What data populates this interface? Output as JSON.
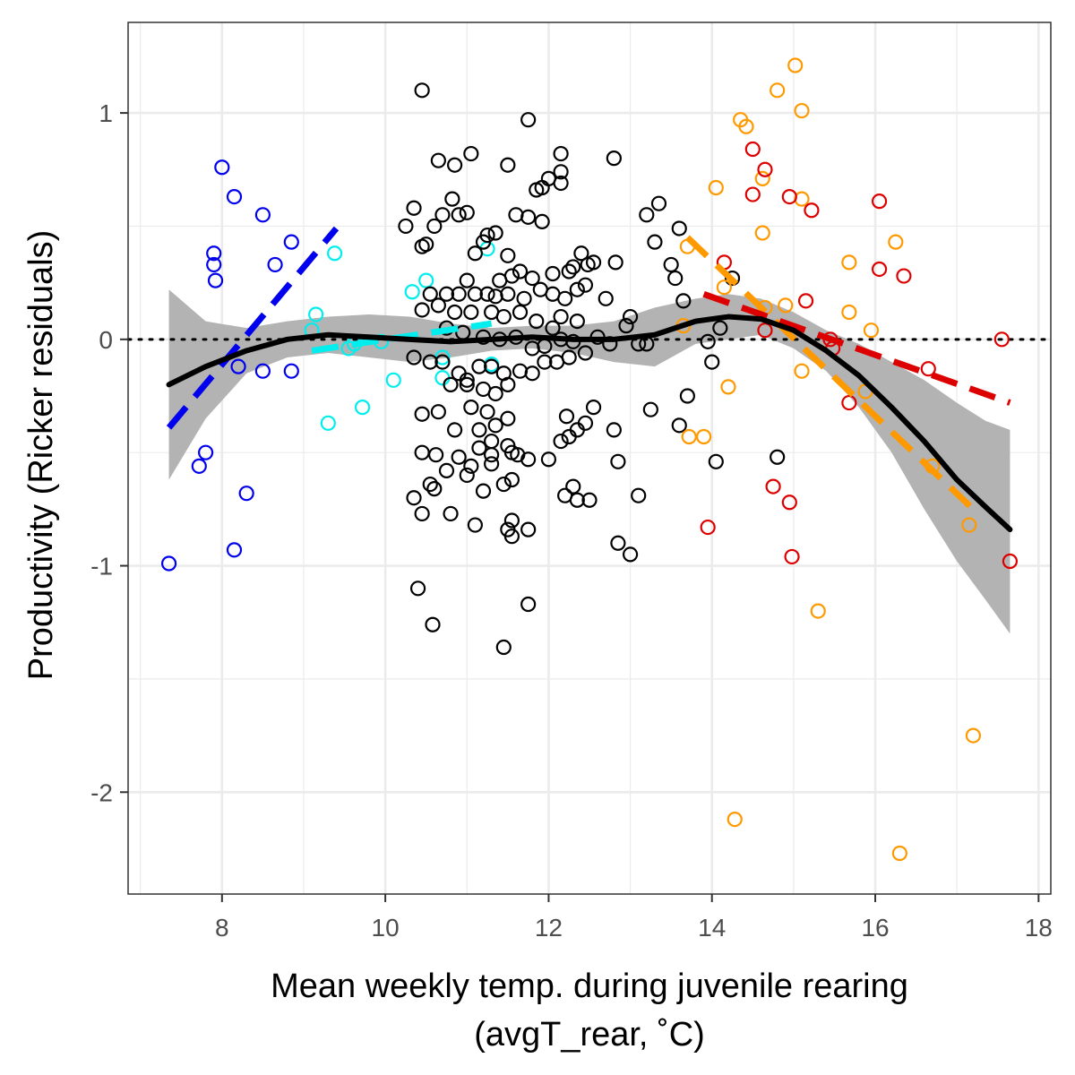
{
  "chart_data": {
    "type": "scatter",
    "title": "",
    "xlabel": "Mean weekly temp. during juvenile rearing",
    "xlabel_line2": "(avgT_rear, ˚C)",
    "ylabel": "Productivity (Ricker residuals)",
    "xlim": [
      6.85,
      18.15
    ],
    "ylim": [
      -2.45,
      1.4
    ],
    "x_ticks": [
      8,
      10,
      12,
      14,
      16,
      18
    ],
    "x_tick_labels": [
      "8",
      "10",
      "12",
      "14",
      "16",
      "18"
    ],
    "y_ticks": [
      -2,
      -1,
      0,
      1
    ],
    "y_tick_labels": [
      "-2",
      "-1",
      "0",
      "1"
    ],
    "grid": true,
    "reference_line_y": 0,
    "colors": {
      "blue": "#0000ee",
      "cyan": "#00eeee",
      "black": "#000000",
      "orange": "#ff9900",
      "red": "#dd0000",
      "ribbon": "#b3b3b3",
      "grid": "#ebebeb"
    },
    "series": [
      {
        "color": "blue",
        "points": [
          [
            7.35,
            -0.99
          ],
          [
            8.0,
            0.76
          ],
          [
            8.15,
            0.63
          ],
          [
            8.5,
            0.55
          ],
          [
            7.9,
            0.38
          ],
          [
            7.9,
            0.33
          ],
          [
            7.92,
            0.26
          ],
          [
            8.85,
            0.43
          ],
          [
            8.65,
            0.33
          ],
          [
            8.2,
            -0.12
          ],
          [
            8.5,
            -0.14
          ],
          [
            8.85,
            -0.14
          ],
          [
            7.8,
            -0.5
          ],
          [
            7.72,
            -0.56
          ],
          [
            8.3,
            -0.68
          ],
          [
            8.15,
            -0.93
          ]
        ]
      },
      {
        "color": "cyan",
        "points": [
          [
            9.38,
            0.38
          ],
          [
            9.15,
            0.11
          ],
          [
            9.1,
            0.04
          ],
          [
            9.55,
            -0.04
          ],
          [
            9.62,
            -0.02
          ],
          [
            9.3,
            -0.37
          ],
          [
            9.72,
            -0.3
          ],
          [
            9.95,
            -0.01
          ],
          [
            10.1,
            -0.18
          ],
          [
            10.33,
            0.21
          ],
          [
            10.5,
            0.26
          ],
          [
            10.7,
            -0.08
          ],
          [
            10.7,
            -0.17
          ],
          [
            11.25,
            0.4
          ],
          [
            11.3,
            -0.11
          ]
        ]
      },
      {
        "color": "black",
        "points": [
          [
            10.45,
            1.1
          ],
          [
            11.75,
            0.97
          ],
          [
            11.05,
            0.82
          ],
          [
            12.15,
            0.82
          ],
          [
            10.65,
            0.79
          ],
          [
            10.85,
            0.77
          ],
          [
            11.5,
            0.77
          ],
          [
            12.8,
            0.8
          ],
          [
            12.15,
            0.74
          ],
          [
            12.0,
            0.71
          ],
          [
            11.92,
            0.67
          ],
          [
            11.85,
            0.66
          ],
          [
            12.15,
            0.69
          ],
          [
            10.82,
            0.62
          ],
          [
            10.35,
            0.58
          ],
          [
            10.7,
            0.55
          ],
          [
            10.9,
            0.55
          ],
          [
            11.0,
            0.56
          ],
          [
            11.6,
            0.55
          ],
          [
            11.75,
            0.54
          ],
          [
            11.92,
            0.52
          ],
          [
            13.2,
            0.55
          ],
          [
            13.35,
            0.6
          ],
          [
            10.25,
            0.5
          ],
          [
            10.6,
            0.5
          ],
          [
            11.25,
            0.46
          ],
          [
            11.35,
            0.47
          ],
          [
            11.2,
            0.43
          ],
          [
            10.45,
            0.41
          ],
          [
            10.5,
            0.42
          ],
          [
            12.4,
            0.38
          ],
          [
            13.6,
            0.49
          ],
          [
            13.3,
            0.43
          ],
          [
            12.82,
            0.34
          ],
          [
            11.1,
            0.38
          ],
          [
            11.5,
            0.37
          ],
          [
            11.65,
            0.3
          ],
          [
            11.0,
            0.26
          ],
          [
            11.4,
            0.26
          ],
          [
            11.55,
            0.28
          ],
          [
            11.8,
            0.27
          ],
          [
            12.05,
            0.29
          ],
          [
            12.25,
            0.3
          ],
          [
            12.3,
            0.32
          ],
          [
            12.48,
            0.33
          ],
          [
            12.55,
            0.34
          ],
          [
            13.5,
            0.33
          ],
          [
            13.55,
            0.27
          ],
          [
            14.25,
            0.27
          ],
          [
            10.55,
            0.2
          ],
          [
            10.75,
            0.2
          ],
          [
            10.9,
            0.2
          ],
          [
            11.1,
            0.2
          ],
          [
            11.25,
            0.2
          ],
          [
            11.35,
            0.19
          ],
          [
            11.5,
            0.2
          ],
          [
            11.7,
            0.18
          ],
          [
            11.9,
            0.22
          ],
          [
            12.05,
            0.2
          ],
          [
            12.2,
            0.18
          ],
          [
            12.35,
            0.22
          ],
          [
            12.45,
            0.24
          ],
          [
            12.7,
            0.18
          ],
          [
            13.0,
            0.1
          ],
          [
            13.65,
            0.17
          ],
          [
            10.45,
            0.13
          ],
          [
            10.65,
            0.15
          ],
          [
            10.85,
            0.12
          ],
          [
            11.05,
            0.12
          ],
          [
            11.3,
            0.12
          ],
          [
            11.45,
            0.1
          ],
          [
            11.65,
            0.12
          ],
          [
            11.85,
            0.08
          ],
          [
            12.05,
            0.05
          ],
          [
            12.15,
            0.1
          ],
          [
            12.35,
            0.08
          ],
          [
            12.6,
            0.01
          ],
          [
            12.95,
            0.06
          ],
          [
            13.1,
            -0.02
          ],
          [
            10.75,
            0.05
          ],
          [
            10.95,
            0.03
          ],
          [
            11.2,
            0.01
          ],
          [
            11.4,
            0.0
          ],
          [
            11.6,
            0.01
          ],
          [
            11.8,
            -0.04
          ],
          [
            11.95,
            -0.03
          ],
          [
            12.15,
            0.0
          ],
          [
            12.3,
            -0.01
          ],
          [
            12.45,
            -0.06
          ],
          [
            12.75,
            -0.02
          ],
          [
            13.2,
            -0.02
          ],
          [
            13.95,
            -0.01
          ],
          [
            14.1,
            0.05
          ],
          [
            10.35,
            -0.08
          ],
          [
            10.55,
            -0.1
          ],
          [
            10.7,
            -0.1
          ],
          [
            10.9,
            -0.15
          ],
          [
            11.0,
            -0.2
          ],
          [
            11.15,
            -0.12
          ],
          [
            11.3,
            -0.12
          ],
          [
            11.45,
            -0.15
          ],
          [
            11.65,
            -0.14
          ],
          [
            11.8,
            -0.15
          ],
          [
            11.95,
            -0.1
          ],
          [
            12.1,
            -0.1
          ],
          [
            12.25,
            -0.08
          ],
          [
            10.8,
            -0.2
          ],
          [
            11.0,
            -0.18
          ],
          [
            11.2,
            -0.22
          ],
          [
            11.35,
            -0.24
          ],
          [
            11.5,
            -0.2
          ],
          [
            13.7,
            -0.25
          ],
          [
            14.0,
            -0.1
          ],
          [
            10.45,
            -0.33
          ],
          [
            10.65,
            -0.32
          ],
          [
            11.05,
            -0.3
          ],
          [
            11.25,
            -0.32
          ],
          [
            11.5,
            -0.35
          ],
          [
            11.35,
            -0.38
          ],
          [
            11.15,
            -0.4
          ],
          [
            10.85,
            -0.4
          ],
          [
            12.22,
            -0.34
          ],
          [
            12.35,
            -0.4
          ],
          [
            12.45,
            -0.37
          ],
          [
            12.25,
            -0.43
          ],
          [
            12.15,
            -0.45
          ],
          [
            12.8,
            -0.4
          ],
          [
            13.25,
            -0.31
          ],
          [
            13.6,
            -0.38
          ],
          [
            12.55,
            -0.3
          ],
          [
            11.3,
            -0.45
          ],
          [
            11.5,
            -0.47
          ],
          [
            11.15,
            -0.48
          ],
          [
            10.45,
            -0.5
          ],
          [
            10.62,
            -0.51
          ],
          [
            10.9,
            -0.52
          ],
          [
            11.3,
            -0.51
          ],
          [
            11.55,
            -0.5
          ],
          [
            11.62,
            -0.51
          ],
          [
            11.75,
            -0.53
          ],
          [
            12.0,
            -0.53
          ],
          [
            12.85,
            -0.54
          ],
          [
            14.05,
            -0.54
          ],
          [
            14.8,
            -0.52
          ],
          [
            10.75,
            -0.58
          ],
          [
            11.05,
            -0.56
          ],
          [
            11.3,
            -0.55
          ],
          [
            11.55,
            -0.62
          ],
          [
            12.3,
            -0.65
          ],
          [
            12.2,
            -0.69
          ],
          [
            12.35,
            -0.71
          ],
          [
            12.5,
            -0.71
          ],
          [
            13.1,
            -0.69
          ],
          [
            10.35,
            -0.7
          ],
          [
            10.55,
            -0.64
          ],
          [
            10.6,
            -0.66
          ],
          [
            10.45,
            -0.77
          ],
          [
            10.8,
            -0.77
          ],
          [
            11.0,
            -0.6
          ],
          [
            11.1,
            -0.82
          ],
          [
            11.2,
            -0.67
          ],
          [
            11.5,
            -0.84
          ],
          [
            11.55,
            -0.8
          ],
          [
            11.55,
            -0.87
          ],
          [
            11.75,
            -0.84
          ],
          [
            11.45,
            -0.64
          ],
          [
            12.85,
            -0.9
          ],
          [
            13.0,
            -0.95
          ],
          [
            10.4,
            -1.1
          ],
          [
            10.58,
            -1.26
          ],
          [
            11.75,
            -1.17
          ],
          [
            11.45,
            -1.36
          ]
        ]
      },
      {
        "color": "orange",
        "points": [
          [
            15.02,
            1.21
          ],
          [
            14.8,
            1.1
          ],
          [
            15.1,
            1.01
          ],
          [
            14.35,
            0.97
          ],
          [
            14.42,
            0.94
          ],
          [
            14.62,
            0.71
          ],
          [
            14.05,
            0.67
          ],
          [
            15.1,
            0.62
          ],
          [
            14.62,
            0.47
          ],
          [
            16.25,
            0.43
          ],
          [
            13.7,
            0.41
          ],
          [
            15.68,
            0.34
          ],
          [
            14.15,
            0.23
          ],
          [
            14.65,
            0.14
          ],
          [
            14.9,
            0.15
          ],
          [
            15.68,
            0.12
          ],
          [
            15.95,
            0.04
          ],
          [
            13.65,
            0.06
          ],
          [
            15.1,
            -0.14
          ],
          [
            14.2,
            -0.21
          ],
          [
            15.88,
            -0.23
          ],
          [
            13.72,
            -0.43
          ],
          [
            13.9,
            -0.43
          ],
          [
            16.7,
            -0.56
          ],
          [
            17.15,
            -0.82
          ],
          [
            15.3,
            -1.2
          ],
          [
            17.2,
            -1.75
          ],
          [
            14.28,
            -2.12
          ],
          [
            16.3,
            -2.27
          ]
        ]
      },
      {
        "color": "red",
        "points": [
          [
            14.5,
            0.84
          ],
          [
            14.65,
            0.75
          ],
          [
            14.5,
            0.64
          ],
          [
            14.95,
            0.63
          ],
          [
            15.22,
            0.57
          ],
          [
            16.05,
            0.61
          ],
          [
            14.15,
            0.34
          ],
          [
            16.05,
            0.31
          ],
          [
            16.35,
            0.28
          ],
          [
            15.15,
            0.17
          ],
          [
            14.65,
            0.04
          ],
          [
            15.45,
            0.0
          ],
          [
            15.48,
            -0.04
          ],
          [
            17.55,
            0.0
          ],
          [
            15.68,
            -0.28
          ],
          [
            16.65,
            -0.13
          ],
          [
            14.75,
            -0.65
          ],
          [
            14.95,
            -0.72
          ],
          [
            13.95,
            -0.83
          ],
          [
            14.98,
            -0.96
          ],
          [
            17.65,
            -0.98
          ]
        ]
      }
    ],
    "smooth_fit": {
      "color": "black",
      "x": [
        7.35,
        7.8,
        8.3,
        8.8,
        9.3,
        9.8,
        10.3,
        10.8,
        11.3,
        11.8,
        12.3,
        12.8,
        13.3,
        13.8,
        14.2,
        14.6,
        15.0,
        15.4,
        15.8,
        16.2,
        16.6,
        17.0,
        17.35,
        17.65
      ],
      "y": [
        -0.2,
        -0.12,
        -0.05,
        0.0,
        0.02,
        0.01,
        0.0,
        -0.01,
        0.0,
        0.01,
        0.0,
        0.0,
        0.02,
        0.08,
        0.1,
        0.09,
        0.04,
        -0.05,
        -0.16,
        -0.3,
        -0.45,
        -0.62,
        -0.74,
        -0.84
      ],
      "lower": [
        -0.62,
        -0.35,
        -0.15,
        -0.08,
        -0.06,
        -0.08,
        -0.1,
        -0.08,
        -0.05,
        -0.04,
        -0.06,
        -0.1,
        -0.12,
        -0.02,
        0.0,
        0.02,
        -0.04,
        -0.14,
        -0.3,
        -0.5,
        -0.75,
        -0.98,
        -1.15,
        -1.3
      ],
      "upper": [
        0.22,
        0.08,
        0.05,
        0.08,
        0.1,
        0.11,
        0.1,
        0.07,
        0.05,
        0.06,
        0.06,
        0.08,
        0.14,
        0.18,
        0.2,
        0.18,
        0.12,
        0.04,
        -0.02,
        -0.1,
        -0.18,
        -0.28,
        -0.36,
        -0.4
      ]
    },
    "linear_fits": [
      {
        "color": "blue",
        "x": [
          7.35,
          9.4
        ],
        "y": [
          -0.39,
          0.49
        ]
      },
      {
        "color": "cyan",
        "x": [
          9.1,
          11.3
        ],
        "y": [
          -0.05,
          0.07
        ]
      },
      {
        "color": "orange",
        "x": [
          13.7,
          17.2
        ],
        "y": [
          0.45,
          -0.75
        ]
      },
      {
        "color": "red",
        "x": [
          13.9,
          17.65
        ],
        "y": [
          0.2,
          -0.28
        ]
      }
    ]
  }
}
